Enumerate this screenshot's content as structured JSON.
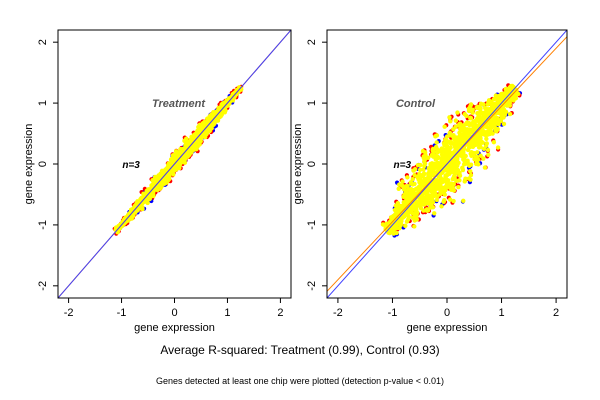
{
  "figure": {
    "caption": "Average R-squared: Treatment (0.99), Control (0.93)",
    "footnote": "Genes detected at least one chip were plotted (detection p-value < 0.01)"
  },
  "colors": {
    "points_primary": "#ffff00",
    "points_red": "#ff0000",
    "points_blue": "#0000ff",
    "fit_line_orange": "#ff7f00",
    "identity_line_blue": "#4040ff",
    "axis": "#000000",
    "annotation_text": "#555555"
  },
  "chart_data": [
    {
      "type": "scatter",
      "title": "",
      "annotation": "Treatment",
      "annotation_position": [
        0.0,
        1.0
      ],
      "sample_count_label": "n=3",
      "sample_count_position": [
        -0.82,
        0.0
      ],
      "xlabel": "gene expression",
      "ylabel": "gene expression",
      "xlim": [
        -2.2,
        2.2
      ],
      "ylim": [
        -2.2,
        2.2
      ],
      "xticks": [
        -2,
        -1,
        0,
        1,
        2
      ],
      "yticks": [
        -2,
        -1,
        0,
        1,
        2
      ],
      "grid": false,
      "point_cloud": {
        "x_range": [
          -1.1,
          1.25
        ],
        "spread": 0.07,
        "description_series": [
          "yellow",
          "red",
          "blue"
        ]
      },
      "lines": [
        {
          "color": "orange",
          "slope": 1.0,
          "intercept": 0.0
        },
        {
          "color": "blue",
          "slope": 1.0,
          "intercept": 0.0
        }
      ]
    },
    {
      "type": "scatter",
      "title": "",
      "annotation": "Control",
      "annotation_position": [
        -0.65,
        1.0
      ],
      "sample_count_label": "n=3",
      "sample_count_position": [
        -0.82,
        0.0
      ],
      "xlabel": "gene expression",
      "ylabel": "gene expression",
      "xlim": [
        -2.2,
        2.2
      ],
      "ylim": [
        -2.2,
        2.2
      ],
      "xticks": [
        -2,
        -1,
        0,
        1,
        2
      ],
      "yticks": [
        -2,
        -1,
        0,
        1,
        2
      ],
      "grid": false,
      "point_cloud": {
        "x_range": [
          -1.1,
          1.25
        ],
        "spread": 0.28,
        "description_series": [
          "yellow",
          "red",
          "blue"
        ]
      },
      "lines": [
        {
          "color": "orange",
          "slope": 0.95,
          "intercept": 0.0
        },
        {
          "color": "blue",
          "slope": 1.0,
          "intercept": 0.0
        }
      ]
    }
  ]
}
